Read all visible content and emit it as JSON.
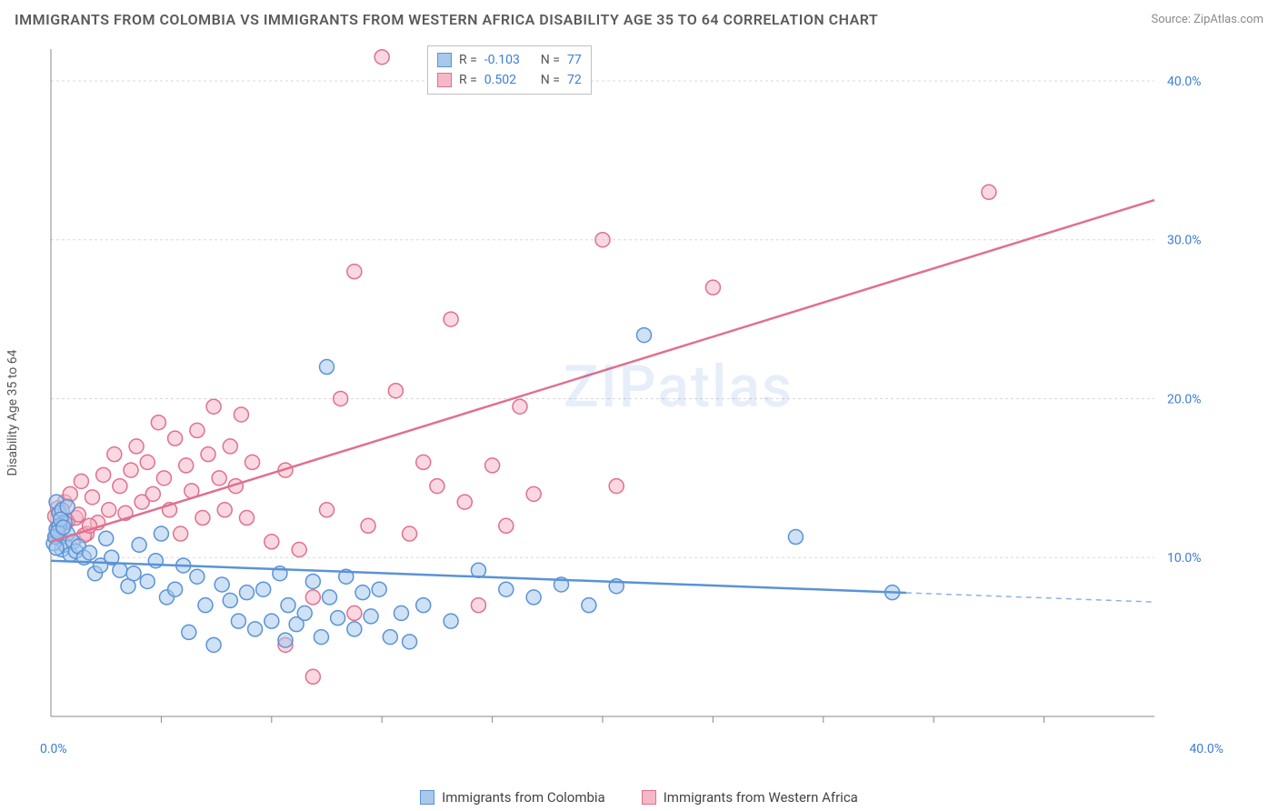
{
  "title": "IMMIGRANTS FROM COLOMBIA VS IMMIGRANTS FROM WESTERN AFRICA DISABILITY AGE 35 TO 64 CORRELATION CHART",
  "source": "Source: ZipAtlas.com",
  "ylabel": "Disability Age 35 to 64",
  "watermark": "ZIPatlas",
  "chart": {
    "type": "scatter",
    "xlim": [
      0,
      40
    ],
    "ylim": [
      0,
      42
    ],
    "xtick_labels": [
      "0.0%",
      "40.0%"
    ],
    "ytick_labels": [
      "10.0%",
      "20.0%",
      "30.0%",
      "40.0%"
    ],
    "ytick_values": [
      10,
      20,
      30,
      40
    ],
    "minor_xticks": [
      4,
      8,
      12,
      16,
      20,
      24,
      28,
      32,
      36
    ],
    "grid_color": "#d8d8d8",
    "axis_color": "#888888",
    "background_color": "#ffffff",
    "marker_radius": 8,
    "marker_stroke_width": 1.5,
    "line_width": 2.5,
    "series": [
      {
        "name": "Immigrants from Colombia",
        "fill": "#a8c8ec",
        "stroke": "#5a93d6",
        "fill_opacity": 0.55,
        "R": "-0.103",
        "N": "77",
        "trend": {
          "y_at_x0": 9.8,
          "y_at_x40": 7.2,
          "solid_until_x": 31
        },
        "points": [
          [
            0.3,
            11.2
          ],
          [
            0.4,
            10.5
          ],
          [
            0.5,
            10.8
          ],
          [
            0.6,
            11.5
          ],
          [
            0.7,
            10.2
          ],
          [
            0.8,
            11.0
          ],
          [
            0.9,
            10.4
          ],
          [
            1.0,
            10.7
          ],
          [
            1.2,
            10.0
          ],
          [
            1.4,
            10.3
          ],
          [
            1.6,
            9.0
          ],
          [
            1.8,
            9.5
          ],
          [
            2.0,
            11.2
          ],
          [
            2.2,
            10.0
          ],
          [
            2.5,
            9.2
          ],
          [
            2.8,
            8.2
          ],
          [
            3.0,
            9.0
          ],
          [
            3.2,
            10.8
          ],
          [
            3.5,
            8.5
          ],
          [
            3.8,
            9.8
          ],
          [
            4.0,
            11.5
          ],
          [
            4.2,
            7.5
          ],
          [
            4.5,
            8.0
          ],
          [
            4.8,
            9.5
          ],
          [
            5.0,
            5.3
          ],
          [
            5.3,
            8.8
          ],
          [
            5.6,
            7.0
          ],
          [
            5.9,
            4.5
          ],
          [
            6.2,
            8.3
          ],
          [
            6.5,
            7.3
          ],
          [
            6.8,
            6.0
          ],
          [
            7.1,
            7.8
          ],
          [
            7.4,
            5.5
          ],
          [
            7.7,
            8.0
          ],
          [
            8.0,
            6.0
          ],
          [
            8.3,
            9.0
          ],
          [
            8.6,
            7.0
          ],
          [
            8.9,
            5.8
          ],
          [
            9.2,
            6.5
          ],
          [
            9.5,
            8.5
          ],
          [
            9.8,
            5.0
          ],
          [
            10.1,
            7.5
          ],
          [
            10.4,
            6.2
          ],
          [
            10.7,
            8.8
          ],
          [
            11.0,
            5.5
          ],
          [
            11.3,
            7.8
          ],
          [
            11.6,
            6.3
          ],
          [
            11.9,
            8.0
          ],
          [
            12.3,
            5.0
          ],
          [
            12.7,
            6.5
          ],
          [
            13.5,
            7.0
          ],
          [
            14.5,
            6.0
          ],
          [
            15.5,
            9.2
          ],
          [
            16.5,
            8.0
          ],
          [
            17.5,
            7.5
          ],
          [
            18.5,
            8.3
          ],
          [
            19.5,
            7.0
          ],
          [
            20.5,
            8.2
          ],
          [
            21.5,
            24.0
          ],
          [
            27.0,
            11.3
          ],
          [
            30.5,
            7.8
          ],
          [
            10.0,
            22.0
          ],
          [
            13.0,
            4.7
          ],
          [
            8.5,
            4.8
          ],
          [
            0.2,
            13.5
          ],
          [
            0.3,
            12.8
          ],
          [
            0.4,
            13.0
          ],
          [
            0.5,
            12.2
          ],
          [
            0.6,
            13.2
          ],
          [
            0.2,
            11.8
          ],
          [
            0.3,
            12.0
          ],
          [
            0.1,
            10.9
          ],
          [
            0.15,
            11.3
          ],
          [
            0.25,
            11.6
          ],
          [
            0.35,
            12.4
          ],
          [
            0.45,
            11.9
          ],
          [
            0.2,
            10.6
          ]
        ]
      },
      {
        "name": "Immigrants from Western Africa",
        "fill": "#f5b8c8",
        "stroke": "#e0708f",
        "fill_opacity": 0.55,
        "R": "0.502",
        "N": "72",
        "trend": {
          "y_at_x0": 11.0,
          "y_at_x40": 32.5,
          "solid_until_x": 40
        },
        "points": [
          [
            0.3,
            12.0
          ],
          [
            0.5,
            13.5
          ],
          [
            0.7,
            14.0
          ],
          [
            0.9,
            12.5
          ],
          [
            1.1,
            14.8
          ],
          [
            1.3,
            11.5
          ],
          [
            1.5,
            13.8
          ],
          [
            1.7,
            12.2
          ],
          [
            1.9,
            15.2
          ],
          [
            2.1,
            13.0
          ],
          [
            2.3,
            16.5
          ],
          [
            2.5,
            14.5
          ],
          [
            2.7,
            12.8
          ],
          [
            2.9,
            15.5
          ],
          [
            3.1,
            17.0
          ],
          [
            3.3,
            13.5
          ],
          [
            3.5,
            16.0
          ],
          [
            3.7,
            14.0
          ],
          [
            3.9,
            18.5
          ],
          [
            4.1,
            15.0
          ],
          [
            4.3,
            13.0
          ],
          [
            4.5,
            17.5
          ],
          [
            4.7,
            11.5
          ],
          [
            4.9,
            15.8
          ],
          [
            5.1,
            14.2
          ],
          [
            5.3,
            18.0
          ],
          [
            5.5,
            12.5
          ],
          [
            5.7,
            16.5
          ],
          [
            5.9,
            19.5
          ],
          [
            6.1,
            15.0
          ],
          [
            6.3,
            13.0
          ],
          [
            6.5,
            17.0
          ],
          [
            6.7,
            14.5
          ],
          [
            6.9,
            19.0
          ],
          [
            7.1,
            12.5
          ],
          [
            7.3,
            16.0
          ],
          [
            8.0,
            11.0
          ],
          [
            8.5,
            15.5
          ],
          [
            9.0,
            10.5
          ],
          [
            9.5,
            7.5
          ],
          [
            10.0,
            13.0
          ],
          [
            10.5,
            20.0
          ],
          [
            11.0,
            28.0
          ],
          [
            11.5,
            12.0
          ],
          [
            12.0,
            41.5
          ],
          [
            12.5,
            20.5
          ],
          [
            13.0,
            11.5
          ],
          [
            13.5,
            16.0
          ],
          [
            14.0,
            14.5
          ],
          [
            14.5,
            25.0
          ],
          [
            15.0,
            13.5
          ],
          [
            15.5,
            7.0
          ],
          [
            16.0,
            15.8
          ],
          [
            16.5,
            12.0
          ],
          [
            17.0,
            19.5
          ],
          [
            17.5,
            14.0
          ],
          [
            8.5,
            4.5
          ],
          [
            9.5,
            2.5
          ],
          [
            11.0,
            6.5
          ],
          [
            20.0,
            30.0
          ],
          [
            20.5,
            14.5
          ],
          [
            24.0,
            27.0
          ],
          [
            34.0,
            33.0
          ],
          [
            0.2,
            11.3
          ],
          [
            0.4,
            11.8
          ],
          [
            0.6,
            12.3
          ],
          [
            0.8,
            11.0
          ],
          [
            1.0,
            12.7
          ],
          [
            1.2,
            11.4
          ],
          [
            1.4,
            12.0
          ],
          [
            0.15,
            12.6
          ],
          [
            0.25,
            13.1
          ]
        ]
      }
    ]
  },
  "stat_box": {
    "rows": [
      {
        "swatch_fill": "#a8c8ec",
        "swatch_stroke": "#5a93d6",
        "r_label": "R =",
        "n_label": "N ="
      },
      {
        "swatch_fill": "#f5b8c8",
        "swatch_stroke": "#e0708f",
        "r_label": "R =",
        "n_label": "N ="
      }
    ]
  },
  "legend": [
    {
      "fill": "#a8c8ec",
      "stroke": "#5a93d6",
      "label": "Immigrants from Colombia"
    },
    {
      "fill": "#f5b8c8",
      "stroke": "#e0708f",
      "label": "Immigrants from Western Africa"
    }
  ]
}
